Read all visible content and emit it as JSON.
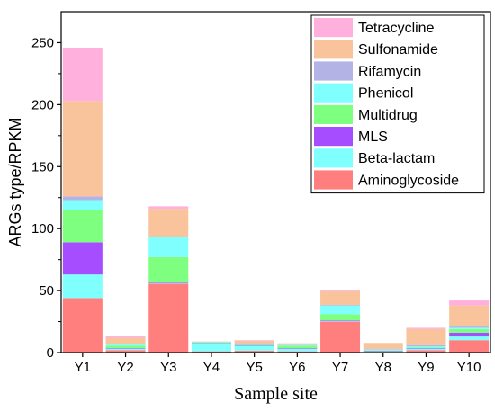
{
  "chart_data": {
    "type": "bar",
    "stacked": true,
    "title": "",
    "xlabel": "Sample site",
    "ylabel": "ARGs type/RPKM",
    "ylim": [
      0,
      275
    ],
    "yticks": [
      0,
      50,
      100,
      150,
      200,
      250
    ],
    "grid": false,
    "legend_position": "top-right",
    "categories": [
      "Y1",
      "Y2",
      "Y3",
      "Y4",
      "Y5",
      "Y6",
      "Y7",
      "Y8",
      "Y9",
      "Y10"
    ],
    "series": [
      {
        "name": "Aminoglycoside",
        "color": "#ff7f7f",
        "values": [
          44,
          2,
          55.5,
          1,
          1.5,
          1,
          25,
          0.5,
          2,
          10
        ]
      },
      {
        "name": "Beta-lactam",
        "color": "#80ffff",
        "values": [
          19,
          1,
          0.5,
          6,
          4,
          2,
          0.5,
          0.5,
          1,
          3
        ]
      },
      {
        "name": "MLS",
        "color": "#a64dff",
        "values": [
          26,
          0.5,
          0.5,
          0.5,
          0.5,
          0.5,
          0.5,
          0.5,
          0.5,
          3
        ]
      },
      {
        "name": "Multidrug",
        "color": "#7fff7f",
        "values": [
          26,
          2,
          20.5,
          0.5,
          0.5,
          2,
          5,
          0.5,
          0.5,
          3
        ]
      },
      {
        "name": "Phenicol",
        "color": "#80ffff",
        "values": [
          8,
          1,
          16,
          0.5,
          0.5,
          0.5,
          7,
          0.5,
          1,
          1
        ]
      },
      {
        "name": "Rifamycin",
        "color": "#b3b3e6",
        "values": [
          3,
          0.5,
          0.5,
          0.3,
          0.5,
          0.3,
          0.5,
          0.3,
          1,
          1
        ]
      },
      {
        "name": "Sulfonamide",
        "color": "#f9c39b",
        "values": [
          77,
          5,
          22.5,
          0.2,
          2,
          1,
          11,
          5,
          13,
          17
        ]
      },
      {
        "name": "Tetracycline",
        "color": "#ffb0dc",
        "values": [
          43,
          1,
          2,
          0,
          0.5,
          0.2,
          1,
          0,
          1,
          4
        ]
      }
    ]
  }
}
